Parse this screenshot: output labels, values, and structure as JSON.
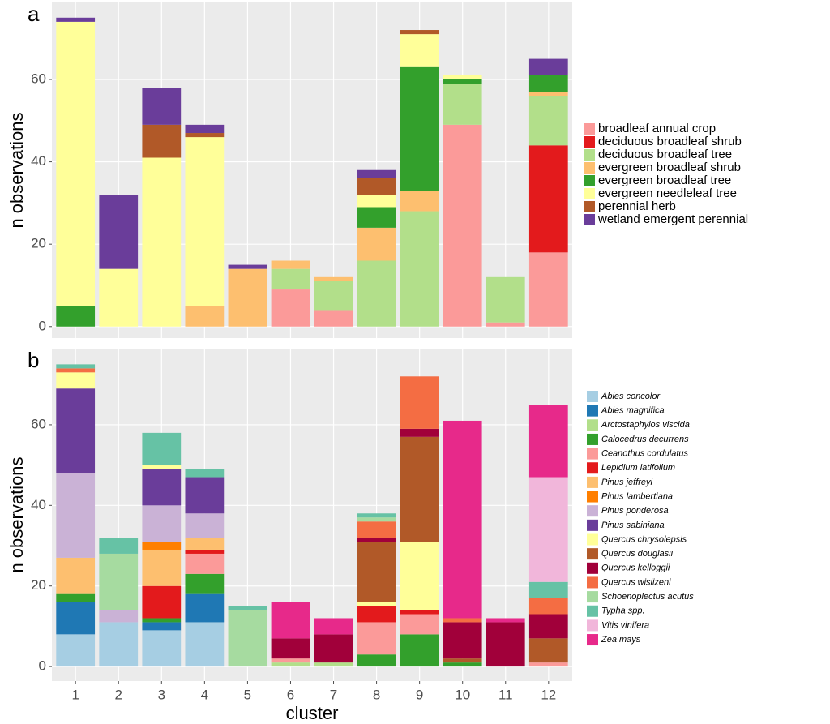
{
  "chart_data": [
    {
      "type": "bar",
      "stacked": true,
      "panel_label": "a",
      "ylabel": "n observations",
      "ylim": [
        -2.8,
        78.7
      ],
      "yticks": [
        0,
        20,
        40,
        60
      ],
      "grid": true,
      "series": [
        {
          "name": "broadleaf annual crop",
          "color": "#fb9a99",
          "values": [
            0,
            0,
            0,
            0,
            0,
            9,
            4,
            0,
            0,
            49,
            1,
            18
          ]
        },
        {
          "name": "deciduous broadleaf shrub",
          "color": "#e31a1c",
          "values": [
            0,
            0,
            0,
            0,
            0,
            0,
            0,
            0,
            0,
            0,
            0,
            26
          ]
        },
        {
          "name": "deciduous broadleaf tree",
          "color": "#b2df8a",
          "values": [
            0,
            0,
            0,
            0,
            0,
            5,
            7,
            16,
            28,
            10,
            11,
            12
          ]
        },
        {
          "name": "evergreen broadleaf shrub",
          "color": "#fdbf6f",
          "values": [
            0,
            0,
            0,
            5,
            14,
            2,
            1,
            8,
            5,
            0,
            0,
            1
          ]
        },
        {
          "name": "evergreen broadleaf tree",
          "color": "#33a02c",
          "values": [
            5,
            0,
            0,
            0,
            0,
            0,
            0,
            5,
            30,
            1,
            0,
            4
          ]
        },
        {
          "name": "evergreen needleleaf tree",
          "color": "#ffff99",
          "values": [
            69,
            14,
            41,
            41,
            0,
            0,
            0,
            3,
            8,
            1,
            0,
            0
          ]
        },
        {
          "name": "perennial herb",
          "color": "#b15928",
          "values": [
            0,
            0,
            8,
            1,
            0,
            0,
            0,
            4,
            1,
            0,
            0,
            0
          ]
        },
        {
          "name": "wetland emergent perennial",
          "color": "#6a3d9a",
          "values": [
            1,
            18,
            9,
            2,
            1,
            0,
            0,
            2,
            0,
            0,
            0,
            4
          ]
        }
      ]
    },
    {
      "type": "bar",
      "stacked": true,
      "panel_label": "b",
      "ylabel": "n observations",
      "xlabel": "cluster",
      "categories": [
        "1",
        "2",
        "3",
        "4",
        "5",
        "6",
        "7",
        "8",
        "9",
        "10",
        "11",
        "12"
      ],
      "ylim": [
        -3.6,
        78.9
      ],
      "yticks": [
        0,
        20,
        40,
        60
      ],
      "grid": true,
      "series": [
        {
          "name": "Abies concolor",
          "color": "#a6cee3",
          "values": [
            8,
            11,
            9,
            11,
            0,
            0,
            0,
            0,
            0,
            0,
            0,
            0
          ]
        },
        {
          "name": "Abies magnifica",
          "color": "#1f78b4",
          "values": [
            8,
            0,
            2,
            7,
            0,
            0,
            0,
            0,
            0,
            0,
            0,
            0
          ]
        },
        {
          "name": "Arctostaphylos viscida",
          "color": "#b2df8a",
          "values": [
            0,
            0,
            0,
            0,
            0,
            1,
            1,
            0,
            0,
            0,
            0,
            0
          ]
        },
        {
          "name": "Calocedrus decurrens",
          "color": "#33a02c",
          "values": [
            2,
            0,
            1,
            5,
            0,
            0,
            0,
            3,
            8,
            1,
            0,
            0
          ]
        },
        {
          "name": "Ceanothus cordulatus",
          "color": "#fb9a99",
          "values": [
            0,
            0,
            0,
            5,
            0,
            1,
            0,
            8,
            5,
            0,
            0,
            1
          ]
        },
        {
          "name": "Lepidium latifolium",
          "color": "#e31a1c",
          "values": [
            0,
            0,
            8,
            1,
            0,
            0,
            0,
            4,
            1,
            0,
            0,
            0
          ]
        },
        {
          "name": "Pinus jeffreyi",
          "color": "#fdbf6f",
          "values": [
            9,
            0,
            9,
            3,
            0,
            0,
            0,
            0,
            0,
            0,
            0,
            0
          ]
        },
        {
          "name": "Pinus lambertiana",
          "color": "#ff7f00",
          "values": [
            0,
            0,
            2,
            0,
            0,
            0,
            0,
            0,
            0,
            0,
            0,
            0
          ]
        },
        {
          "name": "Pinus ponderosa",
          "color": "#cab2d6",
          "values": [
            21,
            3,
            9,
            6,
            0,
            0,
            0,
            0,
            0,
            0,
            0,
            0
          ]
        },
        {
          "name": "Pinus sabiniana",
          "color": "#6a3d9a",
          "values": [
            21,
            0,
            9,
            9,
            0,
            0,
            0,
            0,
            0,
            0,
            0,
            0
          ]
        },
        {
          "name": "Quercus chrysolepsis",
          "color": "#ffff99",
          "values": [
            4,
            0,
            1,
            0,
            0,
            0,
            0,
            1,
            17,
            0,
            0,
            0
          ]
        },
        {
          "name": "Quercus douglasii",
          "color": "#b15928",
          "values": [
            0,
            0,
            0,
            0,
            0,
            0,
            0,
            15,
            26,
            1,
            0,
            6
          ]
        },
        {
          "name": "Quercus kelloggii",
          "color": "#a1003a",
          "values": [
            0,
            0,
            0,
            0,
            0,
            5,
            7,
            1,
            2,
            9,
            11,
            6
          ]
        },
        {
          "name": "Quercus wislizeni",
          "color": "#f46d43",
          "values": [
            1,
            0,
            0,
            0,
            0,
            0,
            0,
            4,
            13,
            1,
            0,
            4
          ]
        },
        {
          "name": "Schoenoplectus acutus",
          "color": "#a6dba0",
          "values": [
            0,
            14,
            0,
            0,
            14,
            0,
            0,
            1,
            0,
            0,
            0,
            0
          ]
        },
        {
          "name": "Typha spp.",
          "color": "#66c2a5",
          "values": [
            1,
            4,
            8,
            2,
            1,
            0,
            0,
            1,
            0,
            0,
            0,
            4
          ]
        },
        {
          "name": "Vitis vinifera",
          "color": "#f1b6da",
          "values": [
            0,
            0,
            0,
            0,
            0,
            0,
            0,
            0,
            0,
            0,
            0,
            26
          ]
        },
        {
          "name": "Zea mays",
          "color": "#e7298a",
          "values": [
            0,
            0,
            0,
            0,
            0,
            9,
            4,
            0,
            0,
            49,
            1,
            18
          ]
        }
      ]
    }
  ]
}
